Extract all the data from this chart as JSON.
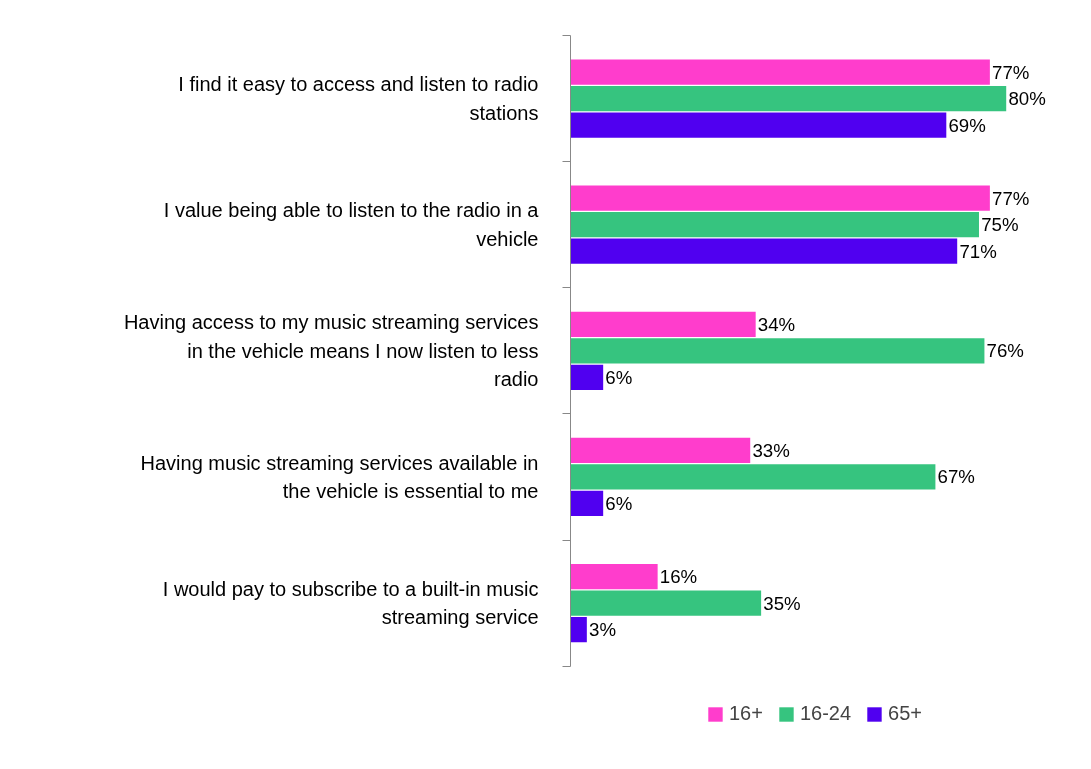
{
  "chart_data": {
    "type": "bar",
    "orientation": "horizontal",
    "categories": [
      "I find it easy to access and listen to radio stations",
      "I value being able to listen to the radio in a vehicle",
      "Having access to my music streaming services in the vehicle means I now listen to less radio",
      "Having music streaming services available in the vehicle is essential to me",
      "I would pay to subscribe to a built-in music streaming service"
    ],
    "series": [
      {
        "name": "16+",
        "color": "#ff3dcc",
        "values": [
          77,
          77,
          34,
          33,
          16
        ],
        "value_labels": [
          "77%",
          "77%",
          "34%",
          "33%",
          "16%"
        ]
      },
      {
        "name": "16-24",
        "color": "#36c47f",
        "values": [
          80,
          75,
          76,
          67,
          35
        ],
        "value_labels": [
          "80%",
          "75%",
          "76%",
          "67%",
          "35%"
        ]
      },
      {
        "name": "65+",
        "color": "#5000f0",
        "values": [
          69,
          71,
          6,
          6,
          3
        ],
        "value_labels": [
          "69%",
          "71%",
          "6%",
          "6%",
          "3%"
        ]
      }
    ],
    "legend": "bottom",
    "grid": false,
    "tick_labels": "y"
  }
}
